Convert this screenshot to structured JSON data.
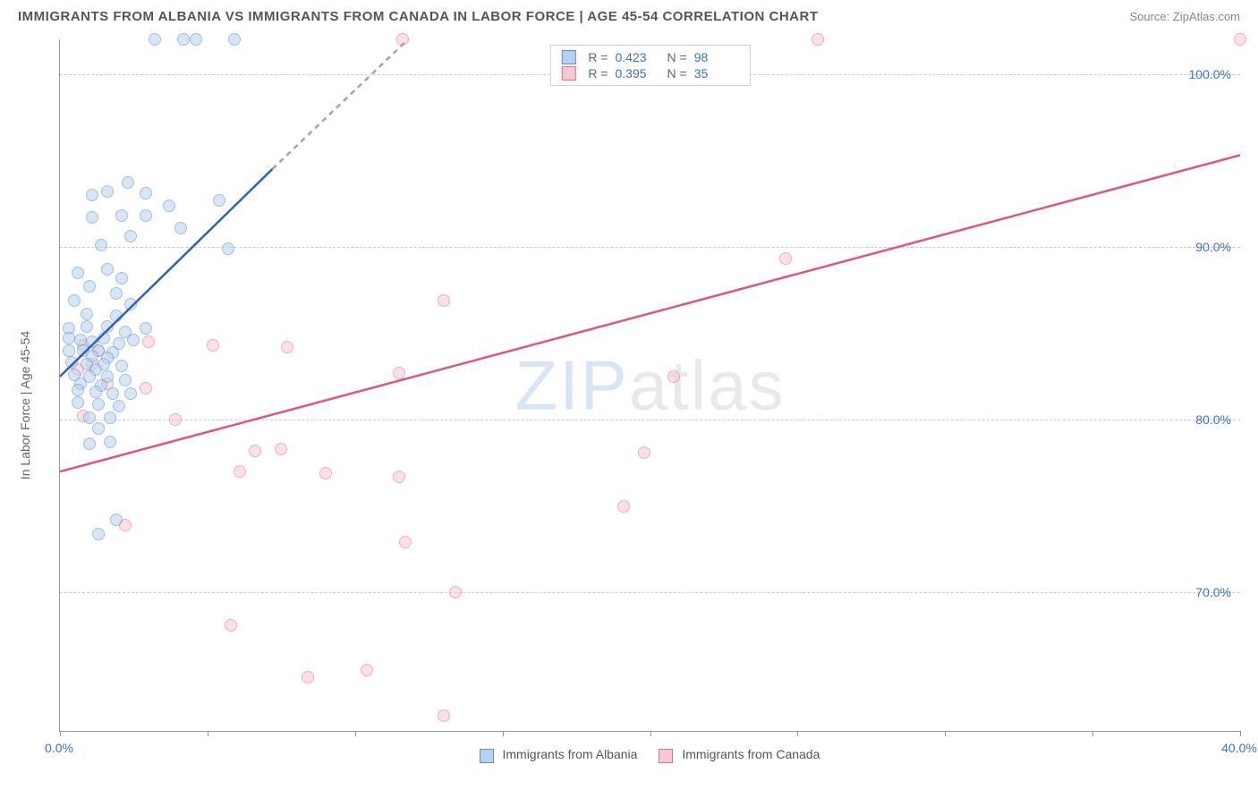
{
  "title": "IMMIGRANTS FROM ALBANIA VS IMMIGRANTS FROM CANADA IN LABOR FORCE | AGE 45-54 CORRELATION CHART",
  "source": "Source: ZipAtlas.com",
  "ylabel": "In Labor Force | Age 45-54",
  "watermark_zip": "ZIP",
  "watermark_atlas": "atlas",
  "chart": {
    "type": "scatter",
    "xlim": [
      0,
      40
    ],
    "ylim": [
      62,
      102
    ],
    "xticks": [
      0,
      5,
      10,
      15,
      20,
      25,
      30,
      35,
      40
    ],
    "xtick_labels": {
      "0": "0.0%",
      "40": "40.0%"
    },
    "yticks": [
      70,
      80,
      90,
      100
    ],
    "ytick_labels": [
      "70.0%",
      "80.0%",
      "90.0%",
      "100.0%"
    ],
    "grid_color": "#cccccc",
    "background_color": "#ffffff",
    "tick_color": "#3b6fd6",
    "axis_color": "#999999",
    "marker_size": 14
  },
  "series": {
    "albania": {
      "label": "Immigrants from Albania",
      "r": "0.423",
      "n": "98",
      "fill": "#b7d0ee",
      "fill_opacity": 0.55,
      "stroke": "#5c8cd6",
      "line_color": "#2f5fc4",
      "dash_color": "#9aa6b8",
      "line_solid": {
        "x1": 0,
        "y1": 82.5,
        "x2": 7.2,
        "y2": 94.5
      },
      "line_dash": {
        "x1": 7.2,
        "y1": 94.5,
        "x2": 11.8,
        "y2": 102
      },
      "points": [
        [
          3.2,
          102
        ],
        [
          4.2,
          102
        ],
        [
          4.6,
          102
        ],
        [
          5.9,
          102
        ],
        [
          1.6,
          93.2
        ],
        [
          2.3,
          93.7
        ],
        [
          1.1,
          93.0
        ],
        [
          2.9,
          93.1
        ],
        [
          1.1,
          91.7
        ],
        [
          2.1,
          91.8
        ],
        [
          2.9,
          91.8
        ],
        [
          3.7,
          92.4
        ],
        [
          5.4,
          92.7
        ],
        [
          4.1,
          91.1
        ],
        [
          1.4,
          90.1
        ],
        [
          2.4,
          90.6
        ],
        [
          5.7,
          89.9
        ],
        [
          0.6,
          88.5
        ],
        [
          1.6,
          88.7
        ],
        [
          2.1,
          88.2
        ],
        [
          1.0,
          87.7
        ],
        [
          1.9,
          87.3
        ],
        [
          0.5,
          86.9
        ],
        [
          2.4,
          86.7
        ],
        [
          0.9,
          86.1
        ],
        [
          1.9,
          86.0
        ],
        [
          0.3,
          85.3
        ],
        [
          0.9,
          85.4
        ],
        [
          1.6,
          85.4
        ],
        [
          2.2,
          85.1
        ],
        [
          2.9,
          85.3
        ],
        [
          0.3,
          84.7
        ],
        [
          0.7,
          84.6
        ],
        [
          1.1,
          84.5
        ],
        [
          1.5,
          84.7
        ],
        [
          2.0,
          84.4
        ],
        [
          2.5,
          84.6
        ],
        [
          0.3,
          84.0
        ],
        [
          0.8,
          84.0
        ],
        [
          1.3,
          84.0
        ],
        [
          1.8,
          83.9
        ],
        [
          1.1,
          83.7
        ],
        [
          1.6,
          83.6
        ],
        [
          0.4,
          83.3
        ],
        [
          0.9,
          83.2
        ],
        [
          1.5,
          83.2
        ],
        [
          2.1,
          83.1
        ],
        [
          1.2,
          82.9
        ],
        [
          0.5,
          82.6
        ],
        [
          1.0,
          82.5
        ],
        [
          1.6,
          82.5
        ],
        [
          2.2,
          82.3
        ],
        [
          0.7,
          82.1
        ],
        [
          1.4,
          82.0
        ],
        [
          0.6,
          81.7
        ],
        [
          1.2,
          81.6
        ],
        [
          1.8,
          81.5
        ],
        [
          2.4,
          81.5
        ],
        [
          0.6,
          81.0
        ],
        [
          1.3,
          80.9
        ],
        [
          2.0,
          80.8
        ],
        [
          1.0,
          80.1
        ],
        [
          1.7,
          80.1
        ],
        [
          1.3,
          79.5
        ],
        [
          1.0,
          78.6
        ],
        [
          1.7,
          78.7
        ],
        [
          1.9,
          74.2
        ],
        [
          1.3,
          73.4
        ]
      ]
    },
    "canada": {
      "label": "Immigrants from Canada",
      "r": "0.395",
      "n": "35",
      "fill": "#f6c8d4",
      "fill_opacity": 0.55,
      "stroke": "#e36f93",
      "line_color": "#e15383",
      "line_solid": {
        "x1": 0,
        "y1": 77.0,
        "x2": 40,
        "y2": 95.3
      },
      "points": [
        [
          11.6,
          102
        ],
        [
          25.7,
          102
        ],
        [
          40.0,
          102
        ],
        [
          24.6,
          89.3
        ],
        [
          13.0,
          86.9
        ],
        [
          0.8,
          84.3
        ],
        [
          1.3,
          84.0
        ],
        [
          3.0,
          84.5
        ],
        [
          5.2,
          84.3
        ],
        [
          7.7,
          84.2
        ],
        [
          1.1,
          83.2
        ],
        [
          0.6,
          82.9
        ],
        [
          11.5,
          82.7
        ],
        [
          20.8,
          82.5
        ],
        [
          1.6,
          82.1
        ],
        [
          2.9,
          81.8
        ],
        [
          0.8,
          80.2
        ],
        [
          3.9,
          80.0
        ],
        [
          6.6,
          78.2
        ],
        [
          7.5,
          78.3
        ],
        [
          19.8,
          78.1
        ],
        [
          6.1,
          77.0
        ],
        [
          9.0,
          76.9
        ],
        [
          11.5,
          76.7
        ],
        [
          19.1,
          75.0
        ],
        [
          2.2,
          73.9
        ],
        [
          11.7,
          72.9
        ],
        [
          13.4,
          70.0
        ],
        [
          5.8,
          68.1
        ],
        [
          8.4,
          65.1
        ],
        [
          10.4,
          65.5
        ],
        [
          13.0,
          62.9
        ]
      ]
    }
  },
  "legend_r_prefix": "R = ",
  "legend_n_prefix": "N = "
}
